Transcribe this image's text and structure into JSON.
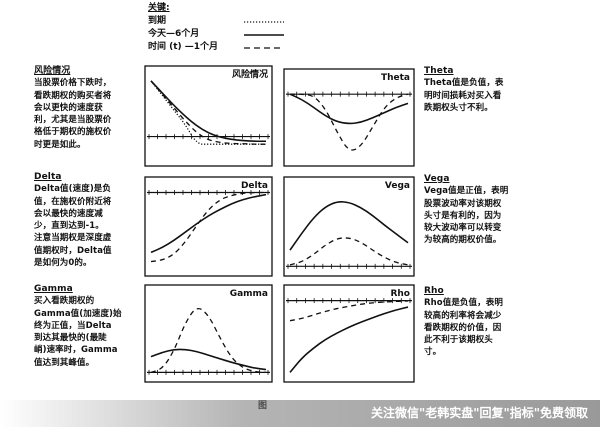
{
  "legend": {
    "header": "关键:",
    "items": [
      {
        "label": "到期",
        "style": "dotted"
      },
      {
        "label": "今天—6个月",
        "style": "solid"
      },
      {
        "label": "时间 (t) —1个月",
        "style": "dashed"
      }
    ]
  },
  "left_column": [
    {
      "heading": "风险情况",
      "text": "当股票价格下跌时，\n看跌期权的购买者将\n会以更快的速度获\n利，尤其是当股票价\n格低于期权的施权价\n时更是如此。"
    },
    {
      "heading": "Delta",
      "text": "Delta值(速度)是负\n值，在施权价附近将\n会以最快的速度减\n少，直到达到-1。\n注意当期权是深度虚\n值期权时，Delta值\n是如何为0的。"
    },
    {
      "heading": "Gamma",
      "text": "买入看跌期权的\nGamma值(加速度)始\n终为正值，当Delta\n到达其最快的(最陡\n峭)速率时，Gamma\n值达到其峰值。"
    }
  ],
  "right_column": [
    {
      "heading": "Theta",
      "text": "Theta值是负值，表\n明时间损耗对买入看\n跌期权头寸不利。"
    },
    {
      "heading": "Vega",
      "text": "Vega值是正值，表明\n股票波动率对该期权\n头寸是有利的，因为\n较大波动率可以转变\n为较高的期权价值。"
    },
    {
      "heading": "Rho",
      "text": "Rho值是负值，表明\n较高的利率将会减少\n看跌期权的价值，因\n此不利于该期权头\n寸。"
    }
  ],
  "figure_label": "图",
  "watermark": "关注微信\"老韩实盘\"回复\"指标\"免费领取",
  "chart_data": [
    {
      "type": "line",
      "title": "风险情况",
      "x": [
        0,
        1,
        2,
        3,
        4,
        5,
        6,
        7,
        8,
        9,
        10
      ],
      "ylim": [
        -4,
        10
      ],
      "zero_line": 0,
      "series": [
        {
          "style": "dotted",
          "values": [
            9.5,
            7,
            4.5,
            2,
            -1.3,
            -1.3,
            -1.3,
            -1.3,
            -1.3,
            -1.3,
            -1.3
          ]
        },
        {
          "style": "solid",
          "values": [
            9.5,
            7.4,
            5.3,
            3.4,
            1.8,
            0.6,
            -0.1,
            -0.5,
            -0.7,
            -0.8,
            -0.8
          ]
        },
        {
          "style": "dashed",
          "values": [
            9.5,
            7.2,
            4.9,
            2.6,
            0.6,
            -0.6,
            -1.0,
            -1.2,
            -1.2,
            -1.3,
            -1.3
          ]
        }
      ]
    },
    {
      "type": "line",
      "title": "Theta",
      "x": [
        0,
        1,
        2,
        3,
        4,
        5,
        6,
        7,
        8,
        9,
        10
      ],
      "ylim": [
        -10,
        2
      ],
      "zero_line": 0,
      "series": [
        {
          "style": "solid",
          "values": [
            0,
            -0.8,
            -2.0,
            -3.3,
            -4.2,
            -4.5,
            -4.3,
            -3.6,
            -2.8,
            -2.0,
            -1.4
          ]
        },
        {
          "style": "dashed",
          "values": [
            0,
            0,
            -0.2,
            -2.2,
            -5.8,
            -8.8,
            -8.0,
            -5.0,
            -2.0,
            -0.5,
            0
          ]
        }
      ]
    },
    {
      "type": "line",
      "title": "Delta",
      "x": [
        0,
        1,
        2,
        3,
        4,
        5,
        6,
        7,
        8,
        9,
        10
      ],
      "ylim": [
        -1.1,
        0.05
      ],
      "zero_line": 0,
      "series": [
        {
          "style": "solid",
          "values": [
            -0.85,
            -0.78,
            -0.68,
            -0.56,
            -0.44,
            -0.33,
            -0.24,
            -0.16,
            -0.1,
            -0.06,
            -0.03
          ]
        },
        {
          "style": "dashed",
          "values": [
            -0.98,
            -0.96,
            -0.88,
            -0.7,
            -0.46,
            -0.24,
            -0.1,
            -0.04,
            -0.01,
            0,
            0
          ]
        }
      ]
    },
    {
      "type": "line",
      "title": "Vega",
      "x": [
        0,
        1,
        2,
        3,
        4,
        5,
        6,
        7,
        8,
        9,
        10
      ],
      "ylim": [
        -0.5,
        10.5
      ],
      "zero_line": 0,
      "series": [
        {
          "style": "solid",
          "values": [
            2.2,
            4.5,
            6.6,
            8.1,
            8.8,
            8.7,
            8.0,
            6.9,
            5.6,
            4.4,
            3.2
          ]
        },
        {
          "style": "dashed",
          "values": [
            0.2,
            0.6,
            1.6,
            2.9,
            3.8,
            3.9,
            3.3,
            2.2,
            1.2,
            0.5,
            0.2
          ]
        }
      ]
    },
    {
      "type": "line",
      "title": "Gamma",
      "x": [
        0,
        1,
        2,
        3,
        4,
        5,
        6,
        7,
        8,
        9,
        10
      ],
      "ylim": [
        -0.5,
        10.5
      ],
      "zero_line": 0,
      "series": [
        {
          "style": "solid",
          "values": [
            2.2,
            2.8,
            3.2,
            3.2,
            2.9,
            2.4,
            1.9,
            1.4,
            1.0,
            0.6,
            0.4
          ]
        },
        {
          "style": "dashed",
          "values": [
            0,
            0.5,
            3.0,
            7.0,
            9.3,
            8.0,
            4.8,
            2.0,
            0.6,
            0.1,
            0
          ]
        }
      ]
    },
    {
      "type": "line",
      "title": "Rho",
      "x": [
        0,
        1,
        2,
        3,
        4,
        5,
        6,
        7,
        8,
        9,
        10
      ],
      "ylim": [
        -10.5,
        0.5
      ],
      "zero_line": 0,
      "series": [
        {
          "style": "solid",
          "values": [
            -10,
            -8,
            -6.6,
            -5.4,
            -4.5,
            -3.7,
            -3.0,
            -2.4,
            -1.8,
            -1.3,
            -0.9
          ]
        },
        {
          "style": "dashed",
          "values": [
            -2.8,
            -2.5,
            -2.0,
            -1.5,
            -1.1,
            -0.8,
            -0.5,
            -0.3,
            -0.2,
            -0.1,
            -0.05
          ]
        }
      ]
    }
  ]
}
